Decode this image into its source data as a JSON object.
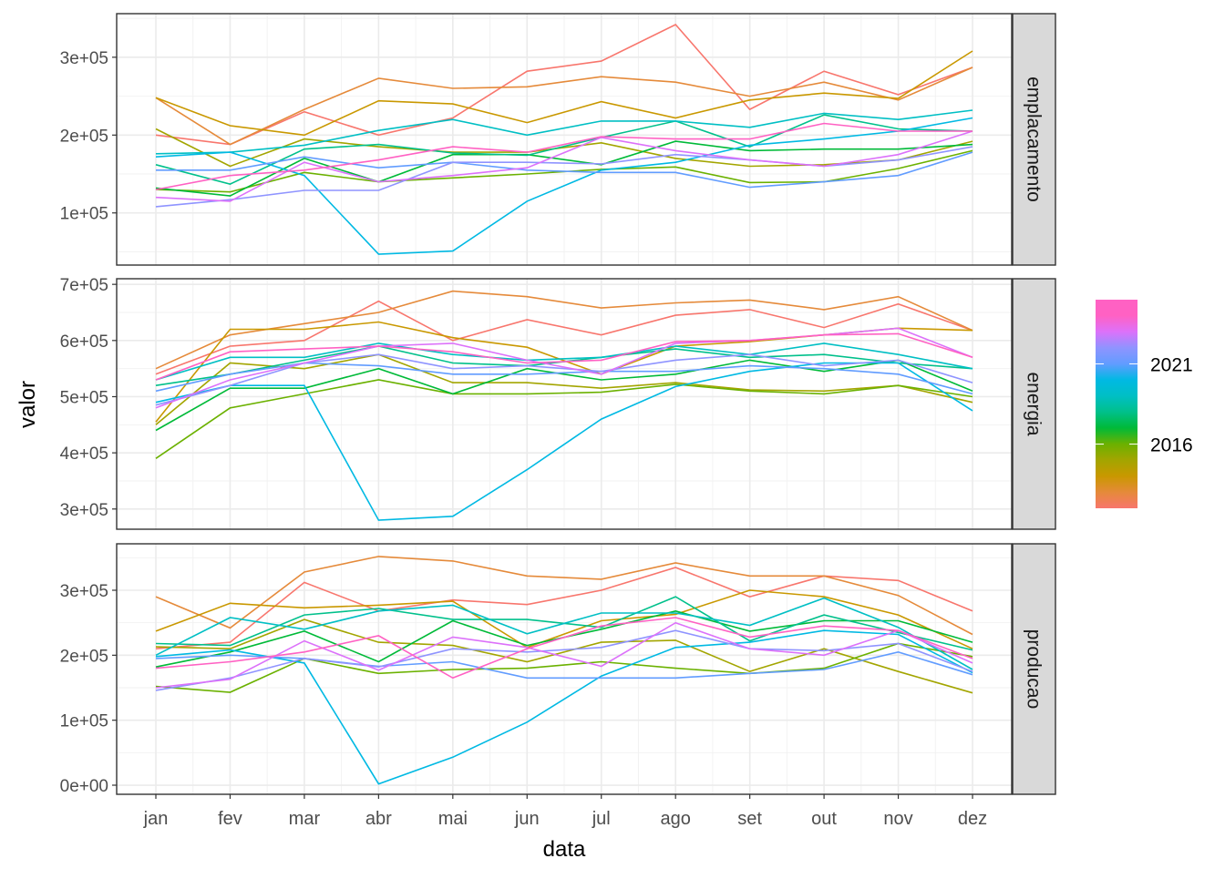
{
  "chart_data": {
    "type": "line",
    "xlabel": "data",
    "ylabel": "valor",
    "x": [
      "jan",
      "fev",
      "mar",
      "abr",
      "mai",
      "jun",
      "jul",
      "ago",
      "set",
      "out",
      "nov",
      "dez"
    ],
    "grid": true,
    "legend": {
      "placement": "right",
      "type": "colorbar",
      "breaks": [
        2016,
        2021
      ],
      "labels": [
        "2016",
        "2021"
      ],
      "range": [
        2012,
        2025
      ]
    },
    "years": [
      2012,
      2013,
      2014,
      2015,
      2016,
      2017,
      2018,
      2019,
      2020,
      2021,
      2022,
      2023,
      2024
    ],
    "colors": [
      "#F8766D",
      "#E58A3A",
      "#C99800",
      "#A3A500",
      "#6BB100",
      "#00BA38",
      "#00C08B",
      "#00BFC4",
      "#00B9E3",
      "#619CFF",
      "#8F94FF",
      "#DC71FA",
      "#FF61C3"
    ],
    "facets": [
      {
        "label": "emplacamento",
        "ylim": [
          33000,
          356000
        ],
        "yticks": [
          100000,
          200000,
          300000
        ],
        "ytick_labels": [
          "1e+05",
          "2e+05",
          "3e+05"
        ],
        "series": [
          {
            "year": 2012,
            "values": [
              200000,
              188000,
              230000,
              200000,
              222000,
              282000,
              295000,
              342000,
              233000,
              282000,
              252000,
              287000
            ]
          },
          {
            "year": 2013,
            "values": [
              248000,
              188000,
              233000,
              273000,
              260000,
              262000,
              275000,
              268000,
              250000,
              268000,
              245000,
              287000
            ]
          },
          {
            "year": 2014,
            "values": [
              248000,
              212000,
              200000,
              244000,
              240000,
              216000,
              243000,
              222000,
              245000,
              254000,
              247000,
              308000
            ]
          },
          {
            "year": 2015,
            "values": [
              208000,
              160000,
              195000,
              185000,
              178000,
              178000,
              190000,
              170000,
              160000,
              162000,
              168000,
              192000
            ]
          },
          {
            "year": 2016,
            "values": [
              130000,
              127000,
              152000,
              140000,
              145000,
              150000,
              156000,
              159000,
              139000,
              140000,
              157000,
              180000
            ]
          },
          {
            "year": 2017,
            "values": [
              132000,
              122000,
              170000,
              140000,
              175000,
              175000,
              162000,
              192000,
              180000,
              182000,
              182000,
              188000
            ]
          },
          {
            "year": 2018,
            "values": [
              162000,
              137000,
              182000,
              188000,
              177000,
              174000,
              197000,
              218000,
              185000,
              226000,
              208000,
              205000
            ]
          },
          {
            "year": 2019,
            "values": [
              176000,
              178000,
              187000,
              206000,
              220000,
              200000,
              218000,
              218000,
              210000,
              228000,
              220000,
              232000
            ]
          },
          {
            "year": 2020,
            "values": [
              172000,
              178000,
              148000,
              47000,
              51000,
              115000,
              155000,
              165000,
              187000,
              195000,
              205000,
              222000
            ]
          },
          {
            "year": 2021,
            "values": [
              155000,
              155000,
              172000,
              158000,
              165000,
              155000,
              152000,
              152000,
              133000,
              140000,
              148000,
              178000
            ]
          },
          {
            "year": 2022,
            "values": [
              108000,
              117000,
              129000,
              129000,
              165000,
              165000,
              163000,
              175000,
              168000,
              160000,
              168000,
              185000
            ]
          },
          {
            "year": 2023,
            "values": [
              120000,
              115000,
              165000,
              140000,
              148000,
              158000,
              197000,
              180000,
              168000,
              160000,
              175000,
              205000
            ]
          },
          {
            "year": 2024,
            "values": [
              130000,
              148000,
              155000,
              168000,
              185000,
              178000,
              198000,
              195000,
              195000,
              215000,
              205000,
              205000
            ]
          }
        ]
      },
      {
        "label": "energia",
        "ylim": [
          264000,
          710000
        ],
        "yticks": [
          300000,
          400000,
          500000,
          600000,
          700000
        ],
        "ytick_labels": [
          "3e+05",
          "4e+05",
          "5e+05",
          "6e+05",
          "7e+05"
        ],
        "series": [
          {
            "year": 2012,
            "values": [
              540000,
              590000,
              600000,
              670000,
              600000,
              637000,
              610000,
              645000,
              655000,
              623000,
              665000,
              618000
            ]
          },
          {
            "year": 2013,
            "values": [
              550000,
              610000,
              630000,
              650000,
              688000,
              678000,
              658000,
              667000,
              672000,
              655000,
              678000,
              618000
            ]
          },
          {
            "year": 2014,
            "values": [
              455000,
              620000,
              620000,
              633000,
              605000,
              588000,
              540000,
              590000,
              598000,
              610000,
              622000,
              618000
            ]
          },
          {
            "year": 2015,
            "values": [
              450000,
              560000,
              550000,
              575000,
              525000,
              525000,
              515000,
              525000,
              512000,
              510000,
              520000,
              490000
            ]
          },
          {
            "year": 2016,
            "values": [
              390000,
              480000,
              505000,
              530000,
              505000,
              505000,
              508000,
              522000,
              510000,
              505000,
              520000,
              500000
            ]
          },
          {
            "year": 2017,
            "values": [
              440000,
              515000,
              515000,
              550000,
              505000,
              550000,
              530000,
              540000,
              565000,
              545000,
              565000,
              510000
            ]
          },
          {
            "year": 2018,
            "values": [
              520000,
              540000,
              565000,
              590000,
              560000,
              555000,
              570000,
              585000,
              570000,
              575000,
              560000,
              550000
            ]
          },
          {
            "year": 2019,
            "values": [
              530000,
              570000,
              570000,
              595000,
              575000,
              565000,
              570000,
              590000,
              575000,
              595000,
              575000,
              550000
            ]
          },
          {
            "year": 2020,
            "values": [
              490000,
              520000,
              520000,
              280000,
              287000,
              370000,
              460000,
              518000,
              545000,
              560000,
              560000,
              475000
            ]
          },
          {
            "year": 2021,
            "values": [
              510000,
              540000,
              560000,
              555000,
              540000,
              540000,
              545000,
              545000,
              555000,
              550000,
              540000,
              505000
            ]
          },
          {
            "year": 2022,
            "values": [
              485000,
              520000,
              560000,
              575000,
              550000,
              555000,
              545000,
              565000,
              575000,
              555000,
              565000,
              525000
            ]
          },
          {
            "year": 2023,
            "values": [
              480000,
              530000,
              560000,
              590000,
              595000,
              565000,
              540000,
              595000,
              600000,
              610000,
              622000,
              570000
            ]
          },
          {
            "year": 2024,
            "values": [
              530000,
              580000,
              585000,
              590000,
              580000,
              560000,
              565000,
              598000,
              600000,
              610000,
              612000,
              570000
            ]
          }
        ]
      },
      {
        "label": "producao",
        "ylim": [
          -14000,
          371500
        ],
        "yticks": [
          0,
          100000,
          200000,
          300000
        ],
        "ytick_labels": [
          "0e+00",
          "1e+05",
          "2e+05",
          "3e+05"
        ],
        "series": [
          {
            "year": 2012,
            "values": [
              210000,
              220000,
              312000,
              268000,
              285000,
              278000,
              300000,
              335000,
              290000,
              322000,
              315000,
              268000
            ]
          },
          {
            "year": 2013,
            "values": [
              290000,
              242000,
              328000,
              352000,
              345000,
              322000,
              317000,
              342000,
              322000,
              322000,
              292000,
              232000
            ]
          },
          {
            "year": 2014,
            "values": [
              237000,
              280000,
              273000,
              277000,
              283000,
              212000,
              253000,
              263000,
              300000,
              290000,
              262000,
              210000
            ]
          },
          {
            "year": 2015,
            "values": [
              213000,
              210000,
              255000,
              220000,
              215000,
              190000,
              220000,
              223000,
              175000,
              210000,
              175000,
              142000
            ]
          },
          {
            "year": 2016,
            "values": [
              152000,
              143000,
              195000,
              172000,
              178000,
              180000,
              190000,
              180000,
              172000,
              180000,
              218000,
              198000
            ]
          },
          {
            "year": 2017,
            "values": [
              182000,
              205000,
              237000,
              190000,
              253000,
              215000,
              240000,
              268000,
              237000,
              253000,
              253000,
              220000
            ]
          },
          {
            "year": 2018,
            "values": [
              218000,
              215000,
              262000,
              272000,
              255000,
              255000,
              243000,
              290000,
              222000,
              262000,
              235000,
              208000
            ]
          },
          {
            "year": 2019,
            "values": [
              200000,
              258000,
              240000,
              268000,
              277000,
              233000,
              265000,
              265000,
              246000,
              288000,
              243000,
              178000
            ]
          },
          {
            "year": 2020,
            "values": [
              198000,
              208000,
              188000,
              2000,
              43000,
              97000,
              168000,
              212000,
              220000,
              238000,
              232000,
              173000
            ]
          },
          {
            "year": 2021,
            "values": [
              195000,
              200000,
              195000,
              183000,
              190000,
              165000,
              165000,
              165000,
              172000,
              178000,
              205000,
              170000
            ]
          },
          {
            "year": 2022,
            "values": [
              146000,
              165000,
              195000,
              182000,
              210000,
              205000,
              212000,
              238000,
              210000,
              207000,
              218000,
              175000
            ]
          },
          {
            "year": 2023,
            "values": [
              150000,
              163000,
              222000,
              177000,
              228000,
              212000,
              183000,
              250000,
              210000,
              200000,
              238000,
              188000
            ]
          },
          {
            "year": 2024,
            "values": [
              180000,
              190000,
              205000,
              230000,
              165000,
              210000,
              245000,
              258000,
              228000,
              245000,
              238000,
              195000
            ]
          }
        ]
      }
    ]
  }
}
